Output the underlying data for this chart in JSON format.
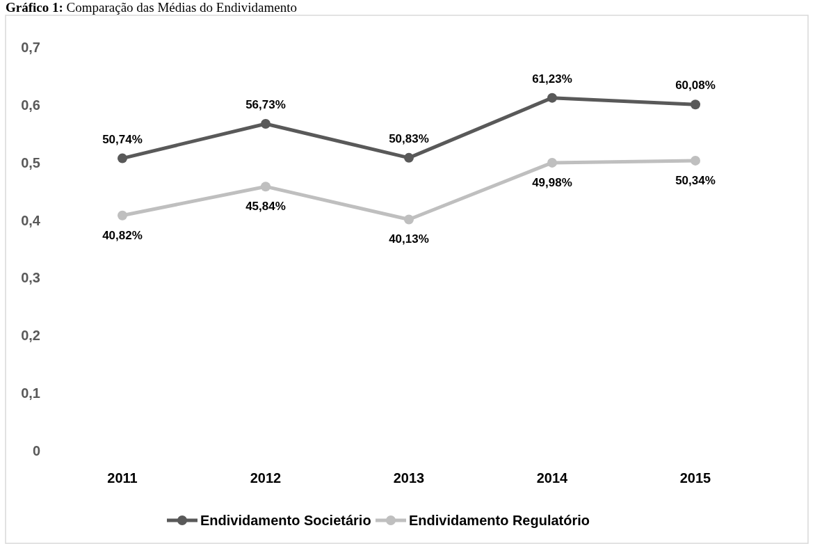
{
  "chart_data": {
    "type": "line",
    "title": "Gráfico 1: Comparação das Médias do Endividamento",
    "categories": [
      "2011",
      "2012",
      "2013",
      "2014",
      "2015"
    ],
    "series": [
      {
        "name": "Endividamento Societário",
        "color": "#595959",
        "values": [
          0.5074,
          0.5673,
          0.5083,
          0.6123,
          0.6008
        ],
        "value_labels": [
          "50,74%",
          "56,73%",
          "50,83%",
          "61,23%",
          "60,08%"
        ]
      },
      {
        "name": "Endividamento Regulatório",
        "color": "#bfbfbf",
        "values": [
          0.4082,
          0.4584,
          0.4013,
          0.4998,
          0.5034
        ],
        "value_labels": [
          "40,82%",
          "45,84%",
          "40,13%",
          "49,98%",
          "50,34%"
        ]
      }
    ],
    "ylim": [
      0,
      0.7
    ],
    "yticks": [
      0,
      {
        "value": 0.1,
        "label": "0,1"
      },
      {
        "value": 0.2,
        "label": "0,2"
      },
      {
        "value": 0.3,
        "label": "0,3"
      },
      {
        "value": 0.4,
        "label": "0,4"
      },
      {
        "value": 0.5,
        "label": "0,5"
      },
      {
        "value": 0.6,
        "label": "0,6"
      },
      {
        "value": 0.7,
        "label": "0,7"
      }
    ],
    "grid": false,
    "legend": "bottom",
    "marker": "circle",
    "line_style": "solid"
  }
}
